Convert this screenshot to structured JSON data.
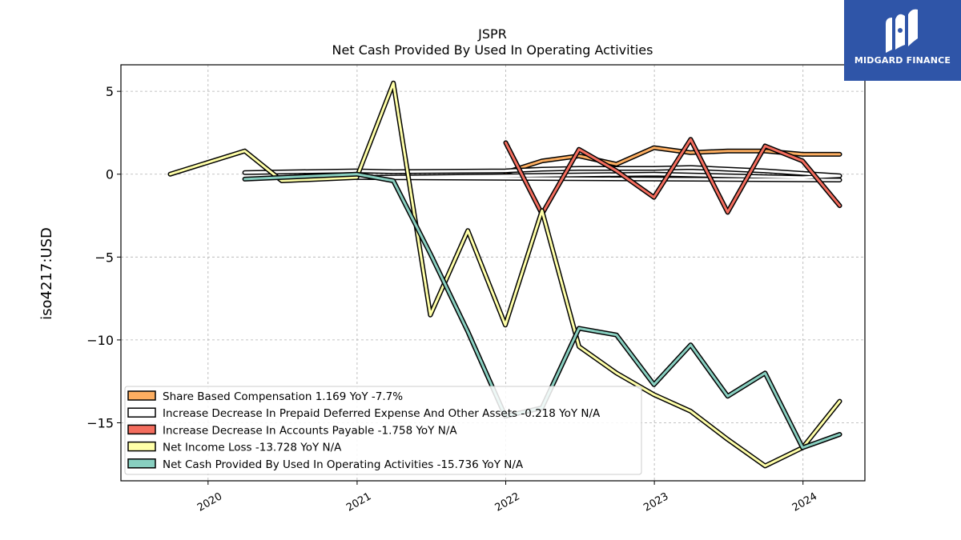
{
  "chart_data": {
    "type": "line",
    "title": "JSPR",
    "subtitle": "Net Cash Provided By Used In Operating Activities",
    "ylabel": "iso4217:USD",
    "xlabel": "",
    "x_range": [
      "2019-06-01",
      "2024-06-01"
    ],
    "ylim": [
      -18.5,
      6.6
    ],
    "yticks": [
      5,
      0,
      -5,
      -10,
      -15
    ],
    "ytick_labels": [
      "5",
      "0",
      "−5",
      "−10",
      "−15"
    ],
    "xticks": [
      "2020-01-01",
      "2021-01-01",
      "2022-01-01",
      "2023-01-01",
      "2024-01-01"
    ],
    "xtick_labels": [
      "2020",
      "2021",
      "2022",
      "2023",
      "2024"
    ],
    "grid": true,
    "legend_position": "lower-left",
    "series": [
      {
        "name": "Share Based Compensation",
        "legend": "Share Based Compensation  1.169 YoY -7.7%",
        "color": "#fdae61",
        "points": [
          [
            "2022-01-01",
            0.1
          ],
          [
            "2022-03-31",
            0.8
          ],
          [
            "2022-06-30",
            1.1
          ],
          [
            "2022-09-30",
            0.6
          ],
          [
            "2022-12-31",
            1.6
          ],
          [
            "2023-03-31",
            1.3
          ],
          [
            "2023-06-30",
            1.4
          ],
          [
            "2023-09-30",
            1.4
          ],
          [
            "2023-12-31",
            1.2
          ],
          [
            "2024-03-31",
            1.2
          ]
        ]
      },
      {
        "name": "Increase Decrease In Prepaid Deferred Expense And Other Assets",
        "legend": "Increase Decrease In Prepaid Deferred Expense And Other Assets  -0.218 YoY N/A",
        "color": "#ffffff",
        "points": [
          [
            "2020-03-31",
            0.1
          ],
          [
            "2020-12-31",
            0.2
          ],
          [
            "2021-03-31",
            0.15
          ],
          [
            "2021-12-31",
            0.2
          ],
          [
            "2022-03-31",
            0.3
          ],
          [
            "2022-06-30",
            0.35
          ],
          [
            "2022-09-30",
            0.35
          ],
          [
            "2022-12-31",
            0.35
          ],
          [
            "2023-03-31",
            0.4
          ],
          [
            "2023-06-30",
            0.3
          ],
          [
            "2023-09-30",
            0.2
          ],
          [
            "2023-12-31",
            0.05
          ],
          [
            "2024-03-31",
            -0.1
          ],
          [
            "2023-12-31",
            -0.2
          ],
          [
            "2022-12-31",
            0.0
          ],
          [
            "2020-12-31",
            -0.2
          ],
          [
            "2024-03-31",
            -0.35
          ]
        ]
      },
      {
        "name": "Increase Decrease In Accounts Payable",
        "legend": "Increase Decrease In Accounts Payable  -1.758 YoY N/A",
        "color": "#f46d5e",
        "points": [
          [
            "2022-01-01",
            1.9
          ],
          [
            "2022-03-31",
            -2.4
          ],
          [
            "2022-06-30",
            1.5
          ],
          [
            "2022-09-30",
            0.2
          ],
          [
            "2022-12-31",
            -1.4
          ],
          [
            "2023-03-31",
            2.1
          ],
          [
            "2023-06-30",
            -2.3
          ],
          [
            "2023-09-30",
            1.7
          ],
          [
            "2023-12-31",
            0.8
          ],
          [
            "2024-03-31",
            -1.9
          ]
        ]
      },
      {
        "name": "Net Income Loss",
        "legend": "Net Income Loss  -13.728 YoY N/A",
        "color": "#ffffa8",
        "points": [
          [
            "2019-09-30",
            0.0
          ],
          [
            "2020-03-31",
            1.4
          ],
          [
            "2020-06-30",
            -0.4
          ],
          [
            "2020-12-31",
            -0.2
          ],
          [
            "2021-03-31",
            5.5
          ],
          [
            "2021-06-30",
            -8.5
          ],
          [
            "2021-09-30",
            -3.4
          ],
          [
            "2021-12-31",
            -9.1
          ],
          [
            "2022-03-31",
            -2.2
          ],
          [
            "2022-06-30",
            -10.4
          ],
          [
            "2022-09-30",
            -12.0
          ],
          [
            "2022-12-31",
            -13.3
          ],
          [
            "2023-03-31",
            -14.3
          ],
          [
            "2023-06-30",
            -16.0
          ],
          [
            "2023-09-30",
            -17.6
          ],
          [
            "2023-12-31",
            -16.5
          ],
          [
            "2024-03-31",
            -13.7
          ]
        ]
      },
      {
        "name": "Net Cash Provided By Used In Operating Activities",
        "legend": "Net Cash Provided By Used In Operating Activities  -15.736 YoY N/A",
        "color": "#88cfc0",
        "points": [
          [
            "2020-03-31",
            -0.3
          ],
          [
            "2020-12-31",
            0.0
          ],
          [
            "2021-03-31",
            -0.4
          ],
          [
            "2021-06-30",
            -4.8
          ],
          [
            "2021-09-30",
            -9.5
          ],
          [
            "2021-12-31",
            -14.6
          ],
          [
            "2022-03-31",
            -14.1
          ],
          [
            "2022-06-30",
            -9.3
          ],
          [
            "2022-09-30",
            -9.7
          ],
          [
            "2022-12-31",
            -12.7
          ],
          [
            "2023-03-31",
            -10.3
          ],
          [
            "2023-06-30",
            -13.4
          ],
          [
            "2023-09-30",
            -12.0
          ],
          [
            "2023-12-31",
            -16.5
          ],
          [
            "2024-03-31",
            -15.7
          ]
        ]
      }
    ]
  },
  "logo": {
    "text": "MIDGARD FINANCE",
    "bg_color": "#2f55a8"
  }
}
